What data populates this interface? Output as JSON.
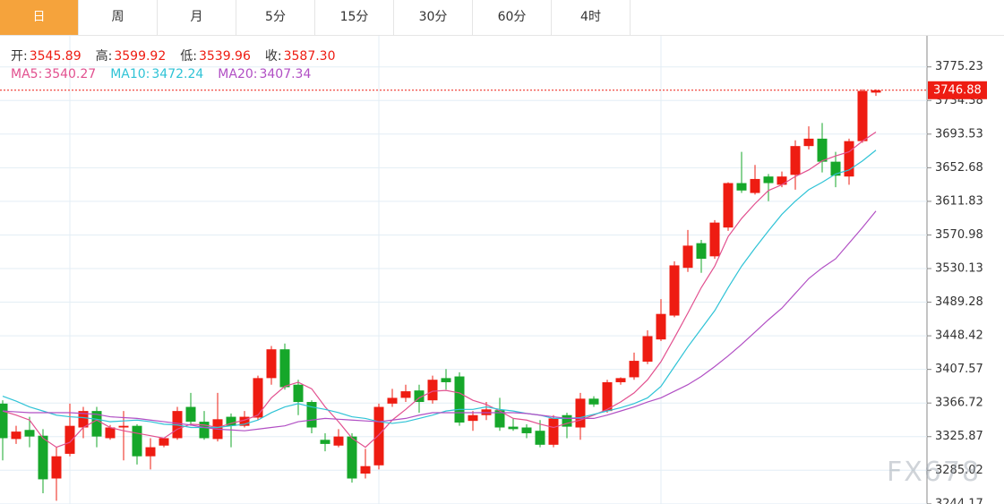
{
  "tabs": [
    "日",
    "周",
    "月",
    "5分",
    "15分",
    "30分",
    "60分",
    "4时"
  ],
  "active_tab": 0,
  "info": [
    {
      "label": "开:",
      "value": "3545.89"
    },
    {
      "label": "高:",
      "value": "3599.92"
    },
    {
      "label": "低:",
      "value": "3539.96"
    },
    {
      "label": "收:",
      "value": "3587.30"
    }
  ],
  "watermark": "FX678",
  "chart_data": {
    "type": "candlestick",
    "up_color": "#ee1c12",
    "down_color": "#16a72a",
    "open": [
      3366,
      3323,
      3334,
      3327,
      3275,
      3305,
      3337,
      3357,
      3324,
      3337,
      3339,
      3302,
      3315,
      3324,
      3362,
      3344,
      3323,
      3350,
      3339,
      3349,
      3397,
      3432,
      3389,
      3368,
      3322,
      3315,
      3326,
      3281,
      3291,
      3366,
      3373,
      3382,
      3370,
      3397,
      3399,
      3345,
      3352,
      3358,
      3338,
      3337,
      3333,
      3316,
      3352,
      3337,
      3372,
      3357,
      3392,
      3398,
      3417,
      3444,
      3473,
      3531,
      3561,
      3545,
      3580,
      3634,
      3622,
      3642,
      3632,
      3644,
      3679,
      3688,
      3660,
      3642,
      3685,
      3744
    ],
    "high": [
      3370,
      3339,
      3350,
      3335,
      3313,
      3366,
      3362,
      3362,
      3340,
      3357,
      3341,
      3324,
      3324,
      3362,
      3379,
      3357,
      3379,
      3354,
      3357,
      3400,
      3436,
      3439,
      3395,
      3370,
      3330,
      3335,
      3330,
      3311,
      3366,
      3384,
      3389,
      3389,
      3400,
      3408,
      3404,
      3357,
      3368,
      3373,
      3348,
      3341,
      3346,
      3352,
      3355,
      3379,
      3375,
      3395,
      3398,
      3428,
      3455,
      3493,
      3539,
      3577,
      3565,
      3589,
      3635,
      3672,
      3656,
      3645,
      3648,
      3686,
      3703,
      3707,
      3672,
      3688,
      3748,
      3748
    ],
    "low": [
      3297,
      3317,
      3313,
      3257,
      3248,
      3302,
      3324,
      3313,
      3322,
      3297,
      3292,
      3286,
      3313,
      3322,
      3339,
      3322,
      3320,
      3313,
      3337,
      3346,
      3389,
      3383,
      3352,
      3330,
      3308,
      3313,
      3270,
      3275,
      3286,
      3362,
      3368,
      3355,
      3366,
      3383,
      3339,
      3333,
      3346,
      3333,
      3333,
      3324,
      3313,
      3313,
      3324,
      3322,
      3362,
      3355,
      3389,
      3395,
      3414,
      3442,
      3471,
      3526,
      3525,
      3542,
      3576,
      3622,
      3620,
      3612,
      3629,
      3626,
      3675,
      3647,
      3629,
      3632,
      3683,
      3740
    ],
    "close": [
      3324,
      3332,
      3326,
      3274,
      3302,
      3339,
      3357,
      3326,
      3337,
      3339,
      3302,
      3313,
      3324,
      3357,
      3344,
      3324,
      3347,
      3339,
      3350,
      3397,
      3432,
      3386,
      3368,
      3337,
      3317,
      3326,
      3275,
      3290,
      3362,
      3373,
      3381,
      3368,
      3395,
      3392,
      3343,
      3352,
      3359,
      3337,
      3335,
      3330,
      3316,
      3348,
      3338,
      3372,
      3365,
      3392,
      3397,
      3418,
      3448,
      3475,
      3534,
      3558,
      3542,
      3586,
      3634,
      3625,
      3639,
      3634,
      3642,
      3679,
      3688,
      3660,
      3643,
      3685,
      3746,
      3746.88
    ],
    "series": [
      {
        "name": "MA5:",
        "legend_value": 3540.27,
        "color": "#e2508f",
        "values": [
          3357,
          3352,
          3346,
          3324,
          3313,
          3319,
          3337,
          3346,
          3337,
          3333,
          3330,
          3327,
          3324,
          3335,
          3341,
          3340,
          3337,
          3342,
          3346,
          3352,
          3373,
          3387,
          3392,
          3384,
          3362,
          3344,
          3324,
          3313,
          3328,
          3346,
          3359,
          3373,
          3381,
          3382,
          3379,
          3370,
          3365,
          3357,
          3348,
          3346,
          3341,
          3337,
          3342,
          3346,
          3352,
          3359,
          3368,
          3379,
          3395,
          3417,
          3446,
          3476,
          3507,
          3533,
          3569,
          3591,
          3609,
          3625,
          3632,
          3642,
          3650,
          3661,
          3667,
          3672,
          3685,
          3696
        ]
      },
      {
        "name": "MA10:",
        "legend_value": 3472.24,
        "color": "#2fc3d6",
        "values": [
          3375,
          3369,
          3362,
          3357,
          3352,
          3350,
          3349,
          3347,
          3344,
          3345,
          3346,
          3344,
          3341,
          3340,
          3337,
          3337,
          3337,
          3339,
          3341,
          3346,
          3355,
          3362,
          3366,
          3362,
          3359,
          3355,
          3350,
          3348,
          3344,
          3342,
          3344,
          3348,
          3352,
          3357,
          3359,
          3359,
          3362,
          3359,
          3357,
          3354,
          3352,
          3348,
          3348,
          3349,
          3353,
          3357,
          3361,
          3366,
          3373,
          3387,
          3411,
          3435,
          3457,
          3479,
          3507,
          3533,
          3555,
          3576,
          3596,
          3612,
          3626,
          3635,
          3645,
          3650,
          3661,
          3674
        ]
      },
      {
        "name": "MA20:",
        "legend_value": 3407.34,
        "color": "#b14fc4",
        "values": [
          3357,
          3356,
          3355,
          3355,
          3355,
          3355,
          3354,
          3353,
          3350,
          3349,
          3348,
          3346,
          3344,
          3342,
          3340,
          3337,
          3335,
          3334,
          3333,
          3335,
          3337,
          3339,
          3344,
          3346,
          3348,
          3347,
          3346,
          3345,
          3344,
          3346,
          3348,
          3352,
          3355,
          3355,
          3355,
          3355,
          3355,
          3355,
          3355,
          3354,
          3352,
          3350,
          3348,
          3348,
          3348,
          3352,
          3357,
          3362,
          3368,
          3373,
          3381,
          3389,
          3399,
          3411,
          3424,
          3438,
          3453,
          3468,
          3482,
          3500,
          3518,
          3531,
          3542,
          3561,
          3580,
          3600
        ]
      }
    ],
    "last_price": 3746.88,
    "ylim": [
      3244,
      3813
    ],
    "yticks": [
      3775.23,
      3734.38,
      3693.53,
      3652.68,
      3611.83,
      3570.98,
      3530.13,
      3489.28,
      3448.42,
      3407.57,
      3366.72,
      3325.87,
      3285.02,
      3244.17
    ],
    "grid": true
  }
}
